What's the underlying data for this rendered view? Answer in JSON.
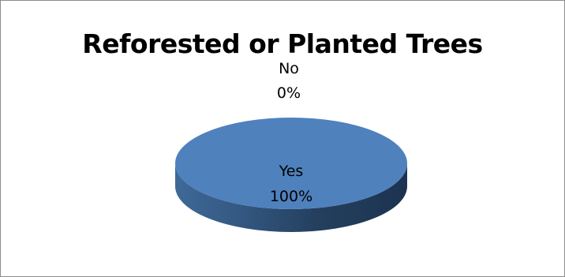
{
  "chart_data": {
    "type": "pie",
    "title": "Reforested or Planted Trees",
    "categories": [
      "Yes",
      "No"
    ],
    "values": [
      100,
      0
    ],
    "data_labels": [
      {
        "category": "Yes",
        "value": "100%"
      },
      {
        "category": "No",
        "value": "0%"
      }
    ],
    "colors": {
      "Yes": "#4f81bd",
      "No": "#c0504d"
    },
    "style": "3d",
    "legend": "none"
  }
}
